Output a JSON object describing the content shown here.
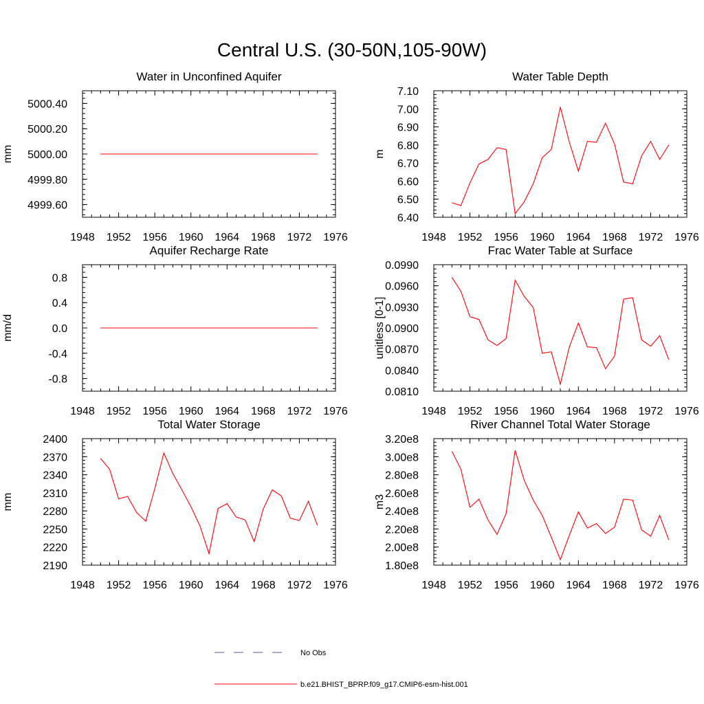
{
  "figure": {
    "title": "Central U.S. (30-50N,105-90W)"
  },
  "colors": {
    "model_line": "#ff0000",
    "obs_line": "#4d5aa8",
    "axis": "#000000"
  },
  "legend": {
    "entries": [
      {
        "label": "No Obs",
        "style": "dashed",
        "color": "#4d5aa8"
      },
      {
        "label": "b.e21.BHIST_BPRP.f09_g17.CMIP6-esm-hist.001",
        "style": "solid",
        "color": "#ff0000"
      }
    ]
  },
  "chart_data": [
    {
      "id": "aquifer-water",
      "type": "line",
      "title": "Water in Unconfined Aquifer",
      "ylabel": "mm",
      "xlim": [
        1948,
        1976
      ],
      "ylim": [
        4999.5,
        5000.5
      ],
      "xticks": [
        1948,
        1952,
        1956,
        1960,
        1964,
        1968,
        1972,
        1976
      ],
      "yticks": [
        4999.6,
        4999.8,
        5000.0,
        5000.2,
        5000.4
      ],
      "ytick_labels": [
        "4999.60",
        "4999.80",
        "5000.00",
        "5000.20",
        "5000.40"
      ],
      "series": [
        {
          "name": "b.e21.BHIST_BPRP.f09_g17.CMIP6-esm-hist.001",
          "x": [
            1950,
            1951,
            1952,
            1953,
            1954,
            1955,
            1956,
            1957,
            1958,
            1959,
            1960,
            1961,
            1962,
            1963,
            1964,
            1965,
            1966,
            1967,
            1968,
            1969,
            1970,
            1971,
            1972,
            1973,
            1974
          ],
          "values": [
            5000.0,
            5000.0,
            5000.0,
            5000.0,
            5000.0,
            5000.0,
            5000.0,
            5000.0,
            5000.0,
            5000.0,
            5000.0,
            5000.0,
            5000.0,
            5000.0,
            5000.0,
            5000.0,
            5000.0,
            5000.0,
            5000.0,
            5000.0,
            5000.0,
            5000.0,
            5000.0,
            5000.0,
            5000.0
          ]
        }
      ]
    },
    {
      "id": "water-table-depth",
      "type": "line",
      "title": "Water Table Depth",
      "ylabel": "m",
      "xlim": [
        1948,
        1976
      ],
      "ylim": [
        6.4,
        7.1
      ],
      "xticks": [
        1948,
        1952,
        1956,
        1960,
        1964,
        1968,
        1972,
        1976
      ],
      "yticks": [
        6.4,
        6.5,
        6.6,
        6.7,
        6.8,
        6.9,
        7.0,
        7.1
      ],
      "ytick_labels": [
        "6.40",
        "6.50",
        "6.60",
        "6.70",
        "6.80",
        "6.90",
        "7.00",
        "7.10"
      ],
      "series": [
        {
          "name": "b.e21.BHIST_BPRP.f09_g17.CMIP6-esm-hist.001",
          "x": [
            1950,
            1951,
            1952,
            1953,
            1954,
            1955,
            1956,
            1957,
            1958,
            1959,
            1960,
            1961,
            1962,
            1963,
            1964,
            1965,
            1966,
            1967,
            1968,
            1969,
            1970,
            1971,
            1972,
            1973,
            1974
          ],
          "values": [
            6.48,
            6.465,
            6.59,
            6.695,
            6.72,
            6.785,
            6.775,
            6.42,
            6.485,
            6.585,
            6.73,
            6.775,
            7.01,
            6.815,
            6.655,
            6.82,
            6.815,
            6.92,
            6.805,
            6.595,
            6.585,
            6.74,
            6.82,
            6.72,
            6.8
          ]
        }
      ]
    },
    {
      "id": "aquifer-recharge",
      "type": "line",
      "title": "Aquifer Recharge Rate",
      "ylabel": "mm/d",
      "xlim": [
        1948,
        1976
      ],
      "ylim": [
        -1.0,
        1.0
      ],
      "xticks": [
        1948,
        1952,
        1956,
        1960,
        1964,
        1968,
        1972,
        1976
      ],
      "yticks": [
        -0.8,
        -0.4,
        0.0,
        0.4,
        0.8
      ],
      "ytick_labels": [
        "-0.8",
        "-0.4",
        "0.0",
        "0.4",
        "0.8"
      ],
      "series": [
        {
          "name": "b.e21.BHIST_BPRP.f09_g17.CMIP6-esm-hist.001",
          "x": [
            1950,
            1951,
            1952,
            1953,
            1954,
            1955,
            1956,
            1957,
            1958,
            1959,
            1960,
            1961,
            1962,
            1963,
            1964,
            1965,
            1966,
            1967,
            1968,
            1969,
            1970,
            1971,
            1972,
            1973,
            1974
          ],
          "values": [
            0,
            0,
            0,
            0,
            0,
            0,
            0,
            0,
            0,
            0,
            0,
            0,
            0,
            0,
            0,
            0,
            0,
            0,
            0,
            0,
            0,
            0,
            0,
            0,
            0
          ]
        }
      ]
    },
    {
      "id": "frac-water-table",
      "type": "line",
      "title": "Frac Water Table at Surface",
      "ylabel": "unitless [0-1]",
      "xlim": [
        1948,
        1976
      ],
      "ylim": [
        0.081,
        0.099
      ],
      "xticks": [
        1948,
        1952,
        1956,
        1960,
        1964,
        1968,
        1972,
        1976
      ],
      "yticks": [
        0.081,
        0.084,
        0.087,
        0.09,
        0.093,
        0.096,
        0.099
      ],
      "ytick_labels": [
        "0.0810",
        "0.0840",
        "0.0870",
        "0.0900",
        "0.0930",
        "0.0960",
        "0.0990"
      ],
      "series": [
        {
          "name": "b.e21.BHIST_BPRP.f09_g17.CMIP6-esm-hist.001",
          "x": [
            1950,
            1951,
            1952,
            1953,
            1954,
            1955,
            1956,
            1957,
            1958,
            1959,
            1960,
            1961,
            1962,
            1963,
            1964,
            1965,
            1966,
            1967,
            1968,
            1969,
            1970,
            1971,
            1972,
            1973,
            1974
          ],
          "values": [
            0.0972,
            0.0952,
            0.0916,
            0.0912,
            0.0883,
            0.0875,
            0.0885,
            0.0968,
            0.0945,
            0.0929,
            0.0864,
            0.0866,
            0.082,
            0.0873,
            0.0907,
            0.0873,
            0.0872,
            0.0842,
            0.086,
            0.0941,
            0.0943,
            0.0883,
            0.0874,
            0.0889,
            0.0855
          ]
        }
      ]
    },
    {
      "id": "total-water-storage",
      "type": "line",
      "title": "Total Water Storage",
      "ylabel": "mm",
      "xlim": [
        1948,
        1976
      ],
      "ylim": [
        2190,
        2400
      ],
      "xticks": [
        1948,
        1952,
        1956,
        1960,
        1964,
        1968,
        1972,
        1976
      ],
      "yticks": [
        2190,
        2220,
        2250,
        2280,
        2310,
        2340,
        2370,
        2400
      ],
      "ytick_labels": [
        "2190",
        "2220",
        "2250",
        "2280",
        "2310",
        "2340",
        "2370",
        "2400"
      ],
      "series": [
        {
          "name": "b.e21.BHIST_BPRP.f09_g17.CMIP6-esm-hist.001",
          "x": [
            1950,
            1951,
            1952,
            1953,
            1954,
            1955,
            1956,
            1957,
            1958,
            1959,
            1960,
            1961,
            1962,
            1963,
            1964,
            1965,
            1966,
            1967,
            1968,
            1969,
            1970,
            1971,
            1972,
            1973,
            1974
          ],
          "values": [
            2367,
            2349,
            2300,
            2304,
            2277,
            2263,
            2317,
            2376,
            2342,
            2315,
            2287,
            2255,
            2209,
            2284,
            2292,
            2270,
            2265,
            2229,
            2283,
            2315,
            2305,
            2268,
            2264,
            2296,
            2256
          ]
        }
      ]
    },
    {
      "id": "river-channel",
      "type": "line",
      "title": "River Channel Total Water Storage",
      "ylabel": "m3",
      "xlim": [
        1948,
        1976
      ],
      "ylim": [
        180000000.0,
        320000000.0
      ],
      "xticks": [
        1948,
        1952,
        1956,
        1960,
        1964,
        1968,
        1972,
        1976
      ],
      "yticks": [
        180000000.0,
        200000000.0,
        220000000.0,
        240000000.0,
        260000000.0,
        280000000.0,
        300000000.0,
        320000000.0
      ],
      "ytick_labels": [
        "1.80e8",
        "2.00e8",
        "2.20e8",
        "2.40e8",
        "2.60e8",
        "2.80e8",
        "3.00e8",
        "3.20e8"
      ],
      "series": [
        {
          "name": "b.e21.BHIST_BPRP.f09_g17.CMIP6-esm-hist.001",
          "x": [
            1950,
            1951,
            1952,
            1953,
            1954,
            1955,
            1956,
            1957,
            1958,
            1959,
            1960,
            1961,
            1962,
            1963,
            1964,
            1965,
            1966,
            1967,
            1968,
            1969,
            1970,
            1971,
            1972,
            1973,
            1974
          ],
          "values": [
            306000000.0,
            286000000.0,
            244000000.0,
            253000000.0,
            230000000.0,
            214000000.0,
            237000000.0,
            307000000.0,
            274000000.0,
            252000000.0,
            235000000.0,
            211000000.0,
            186000000.0,
            213000000.0,
            239000000.0,
            221000000.0,
            226000000.0,
            215000000.0,
            222000000.0,
            253000000.0,
            252000000.0,
            219000000.0,
            212000000.0,
            235000000.0,
            208000000.0
          ]
        }
      ]
    }
  ]
}
